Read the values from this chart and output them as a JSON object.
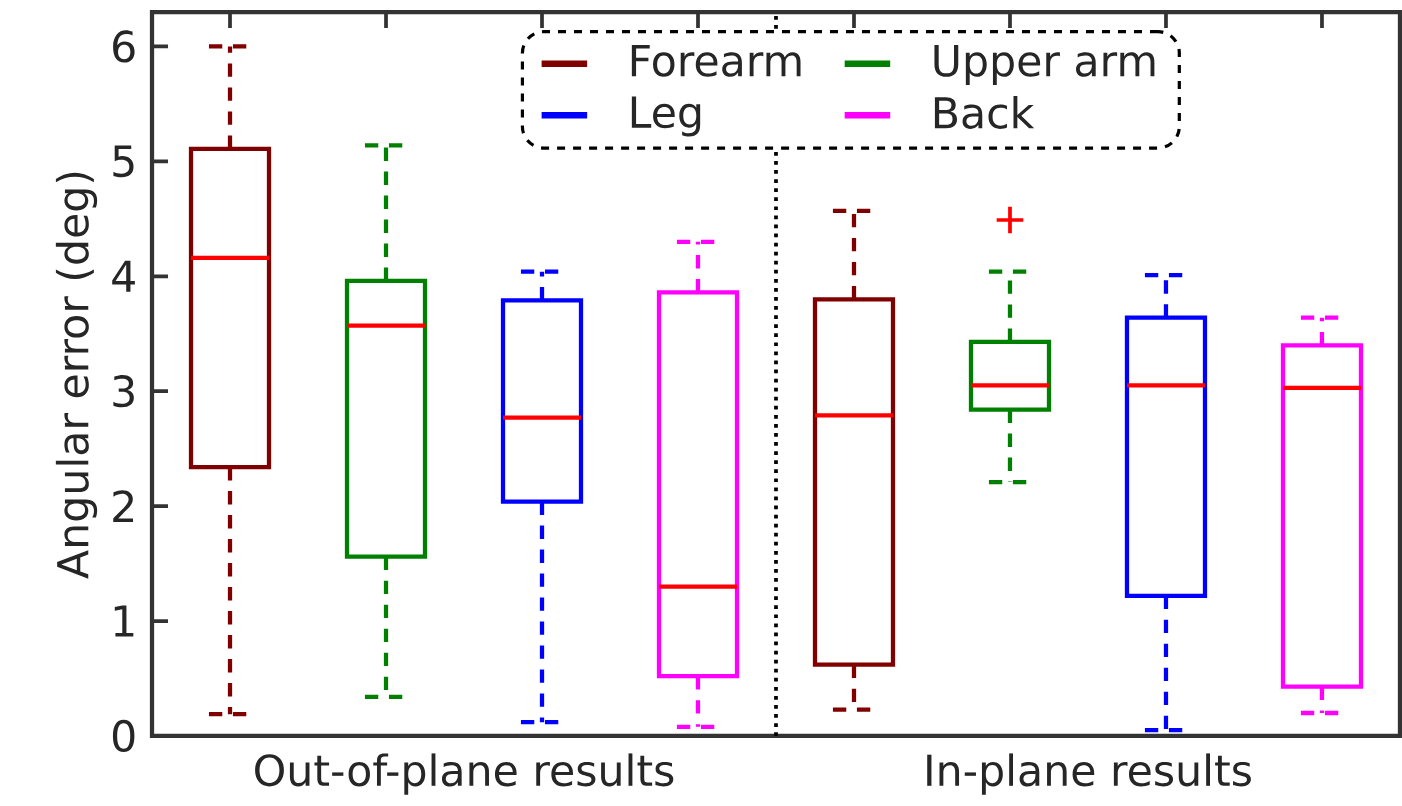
{
  "chart_data": {
    "type": "box",
    "ylabel": "Angular error (deg)",
    "categories": [
      "Out-of-plane results",
      "In-plane results"
    ],
    "series": [
      {
        "name": "Forearm",
        "color": "#800000",
        "boxes": [
          {
            "low": 0.19,
            "q1": 2.34,
            "median": 4.16,
            "q3": 5.11,
            "high": 6.0
          },
          {
            "low": 0.23,
            "q1": 0.62,
            "median": 2.79,
            "q3": 3.8,
            "high": 4.57
          }
        ]
      },
      {
        "name": "Upper arm",
        "color": "#008000",
        "boxes": [
          {
            "low": 0.34,
            "q1": 1.56,
            "median": 3.57,
            "q3": 3.96,
            "high": 5.14
          },
          {
            "low": 2.21,
            "q1": 2.84,
            "median": 3.05,
            "q3": 3.43,
            "high": 4.04,
            "outliers": [
              4.49
            ]
          }
        ]
      },
      {
        "name": "Leg",
        "color": "#0000ff",
        "boxes": [
          {
            "low": 0.12,
            "q1": 2.04,
            "median": 2.77,
            "q3": 3.79,
            "high": 4.04
          },
          {
            "low": 0.05,
            "q1": 1.22,
            "median": 3.05,
            "q3": 3.64,
            "high": 4.01
          }
        ]
      },
      {
        "name": "Back",
        "color": "#ff00ff",
        "boxes": [
          {
            "low": 0.08,
            "q1": 0.52,
            "median": 1.3,
            "q3": 3.86,
            "high": 4.3
          },
          {
            "low": 0.2,
            "q1": 0.43,
            "median": 3.03,
            "q3": 3.4,
            "high": 3.64
          }
        ]
      }
    ],
    "ylim": [
      0,
      6.3
    ],
    "yticks": [
      0,
      1,
      2,
      3,
      4,
      5,
      6
    ],
    "legend": "top",
    "grid": false
  }
}
